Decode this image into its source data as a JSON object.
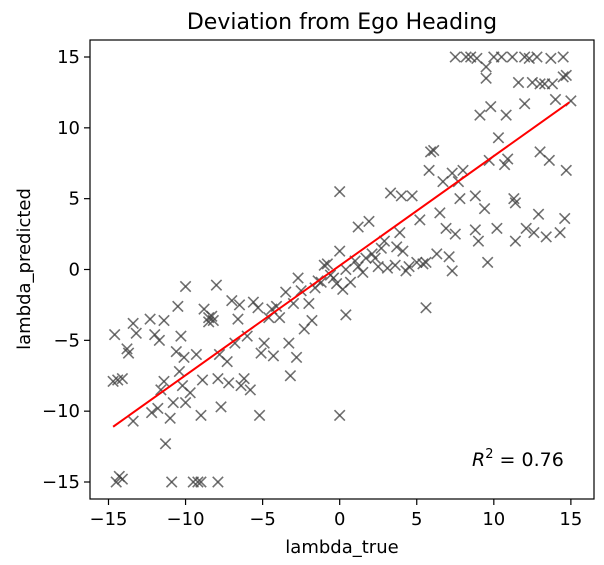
{
  "chart_data": {
    "type": "scatter",
    "title": "Deviation from Ego Heading",
    "xlabel": "lambda_true",
    "ylabel": "lambda_predicted",
    "xlim": [
      -16.2,
      16.5
    ],
    "ylim": [
      -16.2,
      16.2
    ],
    "xticks": [
      -15,
      -10,
      -5,
      0,
      5,
      10,
      15
    ],
    "yticks": [
      -15,
      -10,
      -5,
      0,
      5,
      10,
      15
    ],
    "xtick_labels": [
      "−15",
      "−10",
      "−5",
      "0",
      "5",
      "10",
      "15"
    ],
    "ytick_labels": [
      "−15",
      "−10",
      "−5",
      "0",
      "5",
      "10",
      "15"
    ],
    "grid": false,
    "marker": "x",
    "marker_color": "#404040",
    "fit_color": "#ff0000",
    "annotation": {
      "prefix": "R",
      "exponent": "2",
      "suffix": " = 0.76"
    },
    "fit_line": {
      "x": [
        -14.7,
        14.9
      ],
      "y": [
        -11.1,
        11.8
      ]
    },
    "points": [
      [
        -14.6,
        -4.6
      ],
      [
        -14.7,
        -7.9
      ],
      [
        -14.4,
        -7.8
      ],
      [
        -14.1,
        -7.7
      ],
      [
        -14.3,
        -14.6
      ],
      [
        -14.1,
        -14.8
      ],
      [
        -14.5,
        -15.0
      ],
      [
        -13.8,
        -5.6
      ],
      [
        -13.4,
        -3.8
      ],
      [
        -13.7,
        -5.9
      ],
      [
        -13.2,
        -4.5
      ],
      [
        -13.4,
        -10.7
      ],
      [
        -12.3,
        -3.5
      ],
      [
        -12.0,
        -4.6
      ],
      [
        -12.2,
        -10.1
      ],
      [
        -11.7,
        -5.0
      ],
      [
        -11.8,
        -9.8
      ],
      [
        -11.6,
        -8.5
      ],
      [
        -11.4,
        -7.9
      ],
      [
        -11.3,
        -12.3
      ],
      [
        -11.4,
        -3.6
      ],
      [
        -11.0,
        -10.5
      ],
      [
        -10.9,
        -15.0
      ],
      [
        -10.5,
        -2.6
      ],
      [
        -10.4,
        -7.2
      ],
      [
        -10.8,
        -9.4
      ],
      [
        -10.3,
        -4.7
      ],
      [
        -10.6,
        -5.8
      ],
      [
        -10.2,
        -8.2
      ],
      [
        -10.1,
        -6.2
      ],
      [
        -10.0,
        -9.4
      ],
      [
        -10.0,
        -1.2
      ],
      [
        -9.7,
        -8.7
      ],
      [
        -9.5,
        -15.0
      ],
      [
        -9.3,
        -6.0
      ],
      [
        -9.2,
        -15.0
      ],
      [
        -9.0,
        -10.3
      ],
      [
        -9.0,
        -15.0
      ],
      [
        -8.9,
        -7.8
      ],
      [
        -8.8,
        -2.8
      ],
      [
        -8.5,
        -3.4
      ],
      [
        -8.5,
        -3.7
      ],
      [
        -8.3,
        -3.3
      ],
      [
        -8.2,
        -3.6
      ],
      [
        -8.0,
        -1.1
      ],
      [
        -7.9,
        -7.7
      ],
      [
        -7.8,
        -6.0
      ],
      [
        -7.9,
        -15.0
      ],
      [
        -7.7,
        -9.7
      ],
      [
        -7.3,
        -6.5
      ],
      [
        -7.2,
        -8.0
      ],
      [
        -7.0,
        -2.2
      ],
      [
        -6.8,
        -5.2
      ],
      [
        -6.5,
        -2.5
      ],
      [
        -6.6,
        -3.5
      ],
      [
        -6.4,
        -8.2
      ],
      [
        -6.2,
        -7.7
      ],
      [
        -6.0,
        -4.7
      ],
      [
        -5.8,
        -8.5
      ],
      [
        -5.6,
        -2.3
      ],
      [
        -5.3,
        -2.7
      ],
      [
        -5.2,
        -10.3
      ],
      [
        -5.1,
        -5.9
      ],
      [
        -4.9,
        -5.2
      ],
      [
        -4.6,
        -3.4
      ],
      [
        -4.4,
        -2.8
      ],
      [
        -4.3,
        -6.1
      ],
      [
        -4.1,
        -2.6
      ],
      [
        -3.9,
        -3.4
      ],
      [
        -3.5,
        -1.6
      ],
      [
        -3.3,
        -5.2
      ],
      [
        -3.2,
        -7.5
      ],
      [
        -3.0,
        -2.4
      ],
      [
        -2.8,
        -6.2
      ],
      [
        -2.7,
        -0.6
      ],
      [
        -2.5,
        -1.5
      ],
      [
        -2.3,
        -4.2
      ],
      [
        -2.0,
        -2.4
      ],
      [
        -1.8,
        -3.6
      ],
      [
        -1.6,
        -1.3
      ],
      [
        -1.4,
        -0.8
      ],
      [
        -1.2,
        -0.9
      ],
      [
        -1.0,
        0.3
      ],
      [
        -0.8,
        0.4
      ],
      [
        -0.6,
        -0.4
      ],
      [
        -0.4,
        -0.6
      ],
      [
        -0.2,
        -1.0
      ],
      [
        0.0,
        5.5
      ],
      [
        0.0,
        1.3
      ],
      [
        0.2,
        -1.4
      ],
      [
        0.4,
        0.0
      ],
      [
        0.4,
        -3.2
      ],
      [
        0.0,
        -10.3
      ],
      [
        0.7,
        -0.9
      ],
      [
        1.0,
        0.6
      ],
      [
        1.2,
        0.2
      ],
      [
        1.2,
        3.0
      ],
      [
        1.5,
        -0.2
      ],
      [
        1.7,
        0.8
      ],
      [
        1.9,
        3.4
      ],
      [
        2.1,
        1.1
      ],
      [
        2.3,
        0.8
      ],
      [
        2.5,
        0.2
      ],
      [
        2.7,
        1.5
      ],
      [
        2.9,
        2.0
      ],
      [
        3.1,
        0.1
      ],
      [
        3.3,
        5.4
      ],
      [
        3.6,
        0.3
      ],
      [
        3.7,
        1.6
      ],
      [
        3.9,
        2.6
      ],
      [
        4.0,
        5.2
      ],
      [
        4.1,
        1.3
      ],
      [
        4.3,
        -0.1
      ],
      [
        4.5,
        0.2
      ],
      [
        4.7,
        5.2
      ],
      [
        5.0,
        0.5
      ],
      [
        5.2,
        3.5
      ],
      [
        5.4,
        0.4
      ],
      [
        5.6,
        0.5
      ],
      [
        5.6,
        -2.7
      ],
      [
        5.8,
        7.0
      ],
      [
        5.9,
        8.3
      ],
      [
        6.1,
        8.4
      ],
      [
        6.3,
        1.1
      ],
      [
        6.5,
        4.0
      ],
      [
        6.7,
        6.2
      ],
      [
        6.9,
        2.9
      ],
      [
        7.1,
        0.9
      ],
      [
        7.3,
        6.8
      ],
      [
        7.3,
        -0.1
      ],
      [
        7.5,
        15.0
      ],
      [
        7.5,
        2.5
      ],
      [
        7.7,
        6.2
      ],
      [
        7.8,
        5.0
      ],
      [
        8.0,
        7.0
      ],
      [
        8.2,
        15.0
      ],
      [
        8.5,
        15.0
      ],
      [
        8.8,
        2.8
      ],
      [
        8.8,
        5.2
      ],
      [
        8.9,
        14.9
      ],
      [
        9.0,
        2.0
      ],
      [
        9.1,
        10.9
      ],
      [
        9.4,
        4.3
      ],
      [
        9.5,
        14.3
      ],
      [
        9.5,
        13.5
      ],
      [
        9.6,
        0.5
      ],
      [
        9.7,
        7.7
      ],
      [
        9.8,
        11.5
      ],
      [
        10.0,
        15.0
      ],
      [
        10.2,
        2.9
      ],
      [
        10.3,
        9.3
      ],
      [
        10.5,
        15.0
      ],
      [
        10.7,
        7.4
      ],
      [
        10.8,
        10.9
      ],
      [
        10.9,
        7.8
      ],
      [
        11.2,
        15.0
      ],
      [
        11.3,
        5.0
      ],
      [
        11.4,
        4.7
      ],
      [
        11.4,
        2.0
      ],
      [
        11.6,
        13.2
      ],
      [
        12.0,
        15.0
      ],
      [
        12.0,
        11.7
      ],
      [
        12.1,
        2.9
      ],
      [
        12.3,
        14.9
      ],
      [
        12.5,
        13.2
      ],
      [
        12.6,
        2.6
      ],
      [
        12.8,
        15.0
      ],
      [
        12.9,
        3.9
      ],
      [
        13.0,
        13.1
      ],
      [
        13.0,
        8.3
      ],
      [
        13.3,
        13.1
      ],
      [
        13.4,
        2.3
      ],
      [
        13.6,
        7.7
      ],
      [
        13.7,
        14.9
      ],
      [
        13.8,
        13.1
      ],
      [
        14.0,
        12.0
      ],
      [
        14.3,
        2.6
      ],
      [
        14.5,
        15.0
      ],
      [
        14.5,
        13.6
      ],
      [
        14.6,
        3.6
      ],
      [
        14.7,
        13.7
      ],
      [
        14.7,
        7.0
      ],
      [
        15.0,
        11.9
      ]
    ]
  }
}
